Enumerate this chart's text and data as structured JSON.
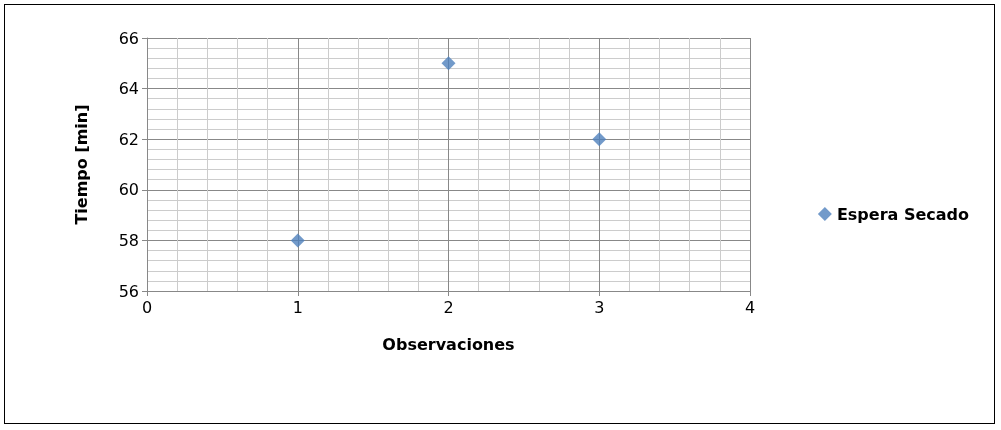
{
  "chart_data": {
    "type": "scatter",
    "xlabel": "Observaciones",
    "ylabel": "Tiempo [min]",
    "x": [
      1,
      2,
      3
    ],
    "series": [
      {
        "name": "Espera Secado",
        "color": "#4f81bd",
        "values": [
          58,
          65,
          62
        ]
      }
    ],
    "xlim": [
      0,
      4
    ],
    "xticks": [
      0,
      1,
      2,
      3,
      4
    ],
    "ylim": [
      56,
      66
    ],
    "yticks": [
      56,
      58,
      60,
      62,
      64,
      66
    ],
    "grid": true,
    "legend": "right",
    "marker": "diamond"
  }
}
